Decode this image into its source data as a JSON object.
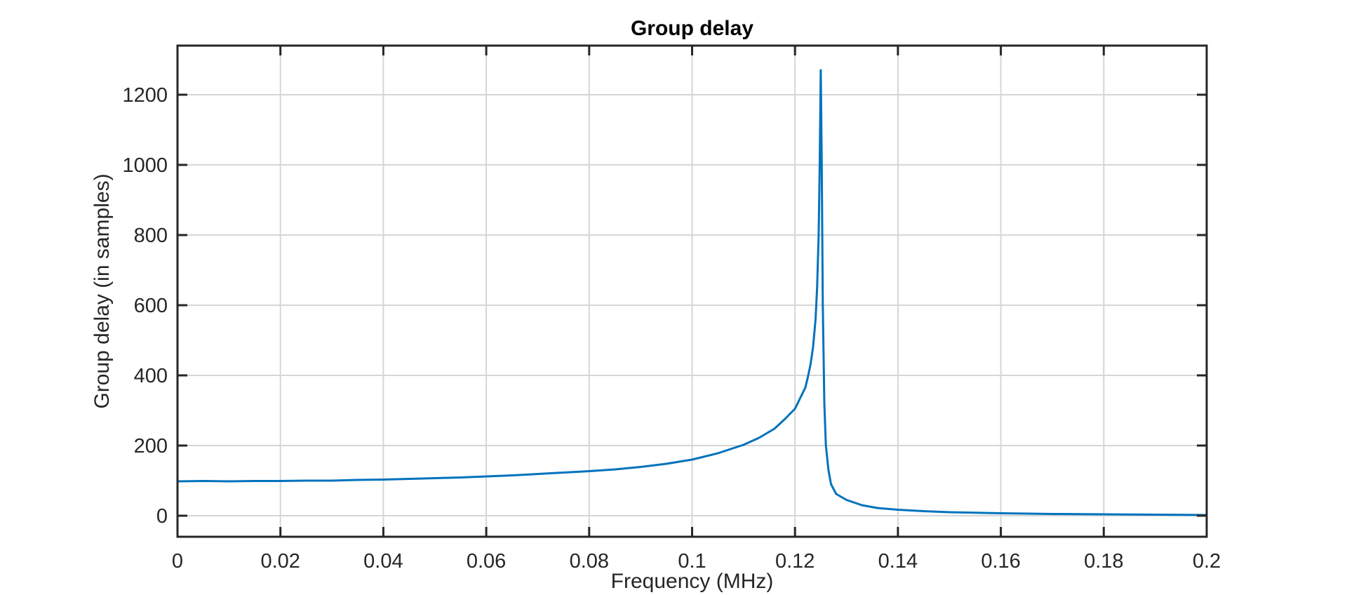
{
  "chart_data": {
    "type": "line",
    "title": "Group delay",
    "xlabel": "Frequency (MHz)",
    "ylabel": "Group delay (in samples)",
    "xlim": [
      0,
      0.2
    ],
    "ylim": [
      -60,
      1340
    ],
    "grid": true,
    "xticks": [
      0,
      0.02,
      0.04,
      0.06,
      0.08,
      0.1,
      0.12,
      0.14,
      0.16,
      0.18,
      0.2
    ],
    "xtick_labels": [
      "0",
      "0.02",
      "0.04",
      "0.06",
      "0.08",
      "0.1",
      "0.12",
      "0.14",
      "0.16",
      "0.18",
      "0.2"
    ],
    "yticks": [
      0,
      200,
      400,
      600,
      800,
      1000,
      1200
    ],
    "ytick_labels": [
      "0",
      "200",
      "400",
      "600",
      "800",
      "1000",
      "1200"
    ],
    "series": [
      {
        "color": "#0072BD",
        "x": [
          0,
          0.005,
          0.01,
          0.015,
          0.02,
          0.025,
          0.03,
          0.035,
          0.04,
          0.045,
          0.05,
          0.055,
          0.06,
          0.065,
          0.07,
          0.075,
          0.08,
          0.085,
          0.09,
          0.095,
          0.1,
          0.105,
          0.11,
          0.113,
          0.116,
          0.118,
          0.12,
          0.121,
          0.122,
          0.1225,
          0.123,
          0.1235,
          0.124,
          0.1243,
          0.1246,
          0.1248,
          0.125,
          0.1252,
          0.1254,
          0.1257,
          0.126,
          0.1265,
          0.127,
          0.128,
          0.13,
          0.133,
          0.136,
          0.14,
          0.145,
          0.15,
          0.16,
          0.17,
          0.18,
          0.19,
          0.2
        ],
        "y": [
          98,
          99,
          98,
          99,
          99,
          100,
          100,
          102,
          103,
          105,
          107,
          109,
          112,
          115,
          119,
          123,
          127,
          132,
          139,
          148,
          160,
          178,
          202,
          222,
          248,
          275,
          305,
          335,
          365,
          395,
          430,
          480,
          560,
          650,
          800,
          1000,
          1270,
          1000,
          600,
          320,
          200,
          130,
          90,
          62,
          45,
          30,
          22,
          17,
          13,
          10,
          7,
          5,
          4,
          3,
          2
        ]
      }
    ]
  }
}
